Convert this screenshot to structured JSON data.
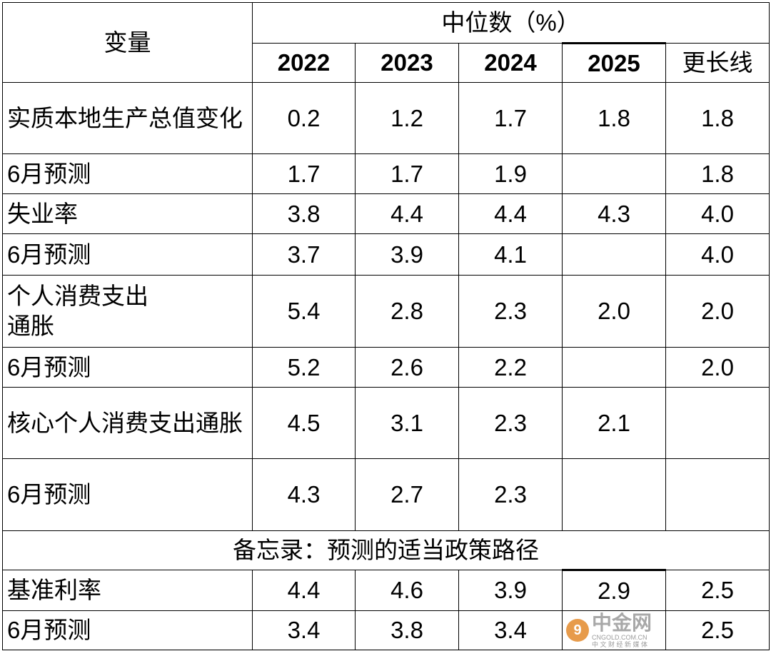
{
  "header": {
    "variable": "变量",
    "median": "中位数（%）",
    "years": [
      "2022",
      "2023",
      "2024",
      "2025",
      "更长线"
    ]
  },
  "rows": [
    {
      "label": "实质本地生产总值变化",
      "values": [
        "0.2",
        "1.2",
        "1.7",
        "1.8",
        "1.8"
      ]
    },
    {
      "label": "6月预测",
      "values": [
        "1.7",
        "1.7",
        "1.9",
        "",
        "1.8"
      ]
    },
    {
      "label": "失业率",
      "values": [
        "3.8",
        "4.4",
        "4.4",
        "4.3",
        "4.0"
      ]
    },
    {
      "label": "6月预测",
      "values": [
        "3.7",
        "3.9",
        "4.1",
        "",
        "4.0"
      ]
    },
    {
      "label": "个人消费支出\n通胀",
      "values": [
        "5.4",
        "2.8",
        "2.3",
        "2.0",
        "2.0"
      ]
    },
    {
      "label": "6月预测",
      "values": [
        "5.2",
        "2.6",
        "2.2",
        "",
        "2.0"
      ]
    },
    {
      "label": "核心个人消费支出通胀",
      "values": [
        "4.5",
        "3.1",
        "2.3",
        "2.1",
        ""
      ]
    },
    {
      "label": "6月预测",
      "values": [
        "4.3",
        "2.7",
        "2.3",
        "",
        ""
      ]
    }
  ],
  "memo": "备忘录：预测的适当政策路径",
  "policy_rows": [
    {
      "label": "基准利率",
      "values": [
        "4.4",
        "4.6",
        "3.9",
        "2.9",
        "2.5"
      ]
    },
    {
      "label": "6月预测",
      "values": [
        "3.4",
        "3.8",
        "3.4",
        "",
        "2.5"
      ]
    }
  ],
  "watermark": {
    "logo": "中金网",
    "domain": "CNGOLD.COM.CN",
    "tagline": "中 文 财 经 新 媒 体"
  }
}
